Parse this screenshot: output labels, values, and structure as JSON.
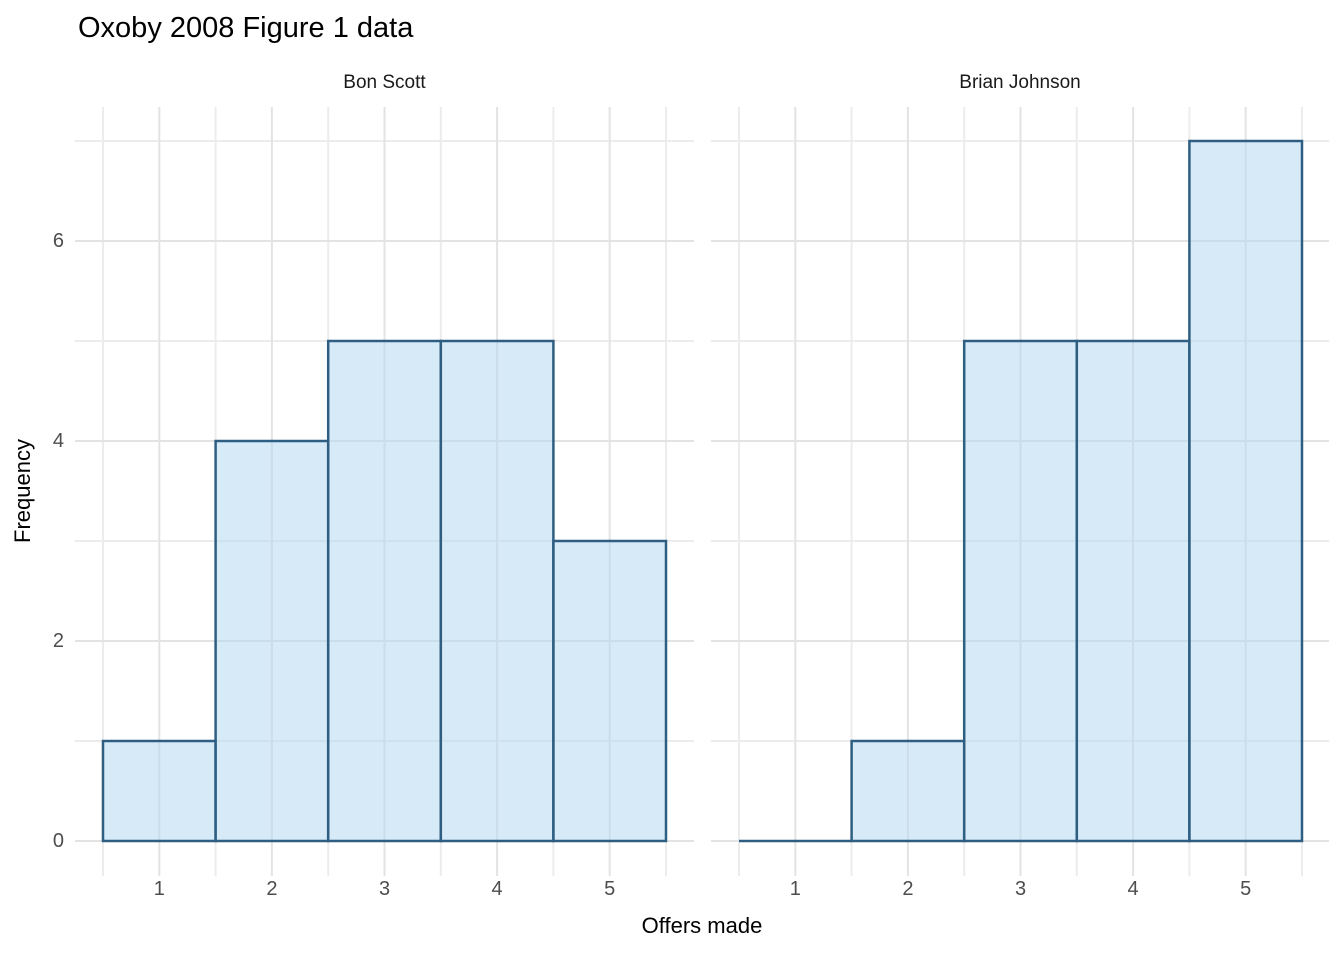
{
  "page": {
    "title": "Oxoby 2008 Figure 1 data"
  },
  "chart_data": {
    "type": "bar",
    "subtype": "faceted-histogram",
    "title": "Oxoby 2008 Figure 1 data",
    "xlabel": "Offers made",
    "ylabel": "Frequency",
    "categories": [
      1,
      2,
      3,
      4,
      5
    ],
    "facets": [
      {
        "label": "Bon Scott",
        "values": [
          1,
          4,
          5,
          5,
          3
        ]
      },
      {
        "label": "Brian Johnson",
        "values": [
          0,
          1,
          5,
          5,
          7
        ]
      }
    ],
    "xlim": [
      0.5,
      5.5
    ],
    "ylim": [
      0,
      7
    ],
    "yticks": [
      0,
      2,
      4,
      6
    ],
    "yticks_minor": [
      1,
      3,
      5,
      7
    ],
    "xticks": [
      1,
      2,
      3,
      4,
      5
    ],
    "xticks_minor": [
      0.5,
      1.5,
      2.5,
      3.5,
      4.5,
      5.5
    ],
    "grid": "major and minor gridlines, no axis lines, no tick marks (minimal theme)",
    "legend": "none",
    "colors": {
      "bar_fill": "#d9eaf6",
      "bar_fill_rgba": "rgba(182,216,240,0.55)",
      "bar_stroke": "#2e5f82",
      "grid_major": "#e3e3e3",
      "grid_minor": "#ececec",
      "tick_label": "#4d4d4d",
      "strip_label": "#1a1a1a",
      "title_color": "#000000",
      "background": "#ffffff"
    }
  }
}
